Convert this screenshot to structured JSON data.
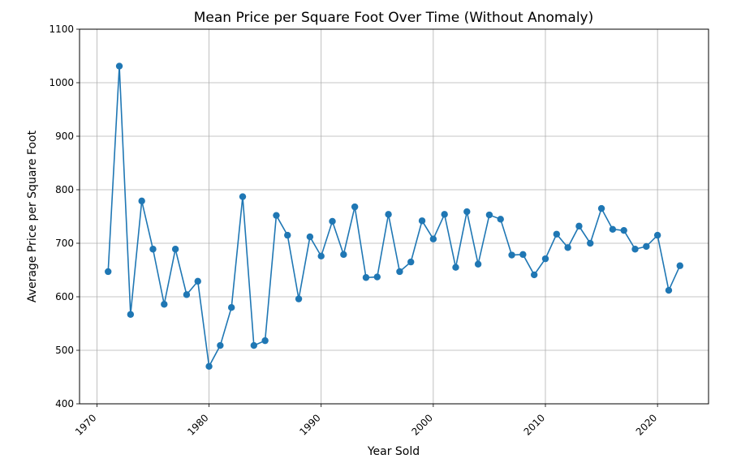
{
  "chart_data": {
    "type": "line",
    "title": "Mean Price per Square Foot Over Time (Without Anomaly)",
    "xlabel": "Year Sold",
    "ylabel": "Average Price per Square Foot",
    "xlim": [
      1968.45,
      2024.55
    ],
    "ylim": [
      400,
      1100
    ],
    "xticks": [
      1970,
      1980,
      1990,
      2000,
      2010,
      2020
    ],
    "yticks": [
      400,
      500,
      600,
      700,
      800,
      900,
      1000,
      1100
    ],
    "grid": true,
    "color": "#1f77b4",
    "x": [
      1971,
      1972,
      1973,
      1974,
      1975,
      1976,
      1977,
      1978,
      1979,
      1980,
      1981,
      1982,
      1983,
      1984,
      1985,
      1986,
      1987,
      1988,
      1989,
      1990,
      1991,
      1992,
      1993,
      1994,
      1995,
      1996,
      1997,
      1998,
      1999,
      2000,
      2001,
      2002,
      2003,
      2004,
      2005,
      2006,
      2007,
      2008,
      2009,
      2010,
      2011,
      2012,
      2013,
      2014,
      2015,
      2016,
      2017,
      2018,
      2019,
      2020,
      2021,
      2022
    ],
    "values": [
      647,
      1031,
      567,
      779,
      689,
      586,
      689,
      604,
      629,
      470,
      509,
      580,
      787,
      509,
      518,
      752,
      715,
      596,
      712,
      676,
      741,
      679,
      768,
      636,
      637,
      754,
      647,
      665,
      742,
      708,
      754,
      655,
      759,
      661,
      753,
      745,
      678,
      679,
      641,
      671,
      717,
      692,
      732,
      700,
      765,
      726,
      724,
      689,
      694,
      715,
      612,
      658
    ]
  }
}
